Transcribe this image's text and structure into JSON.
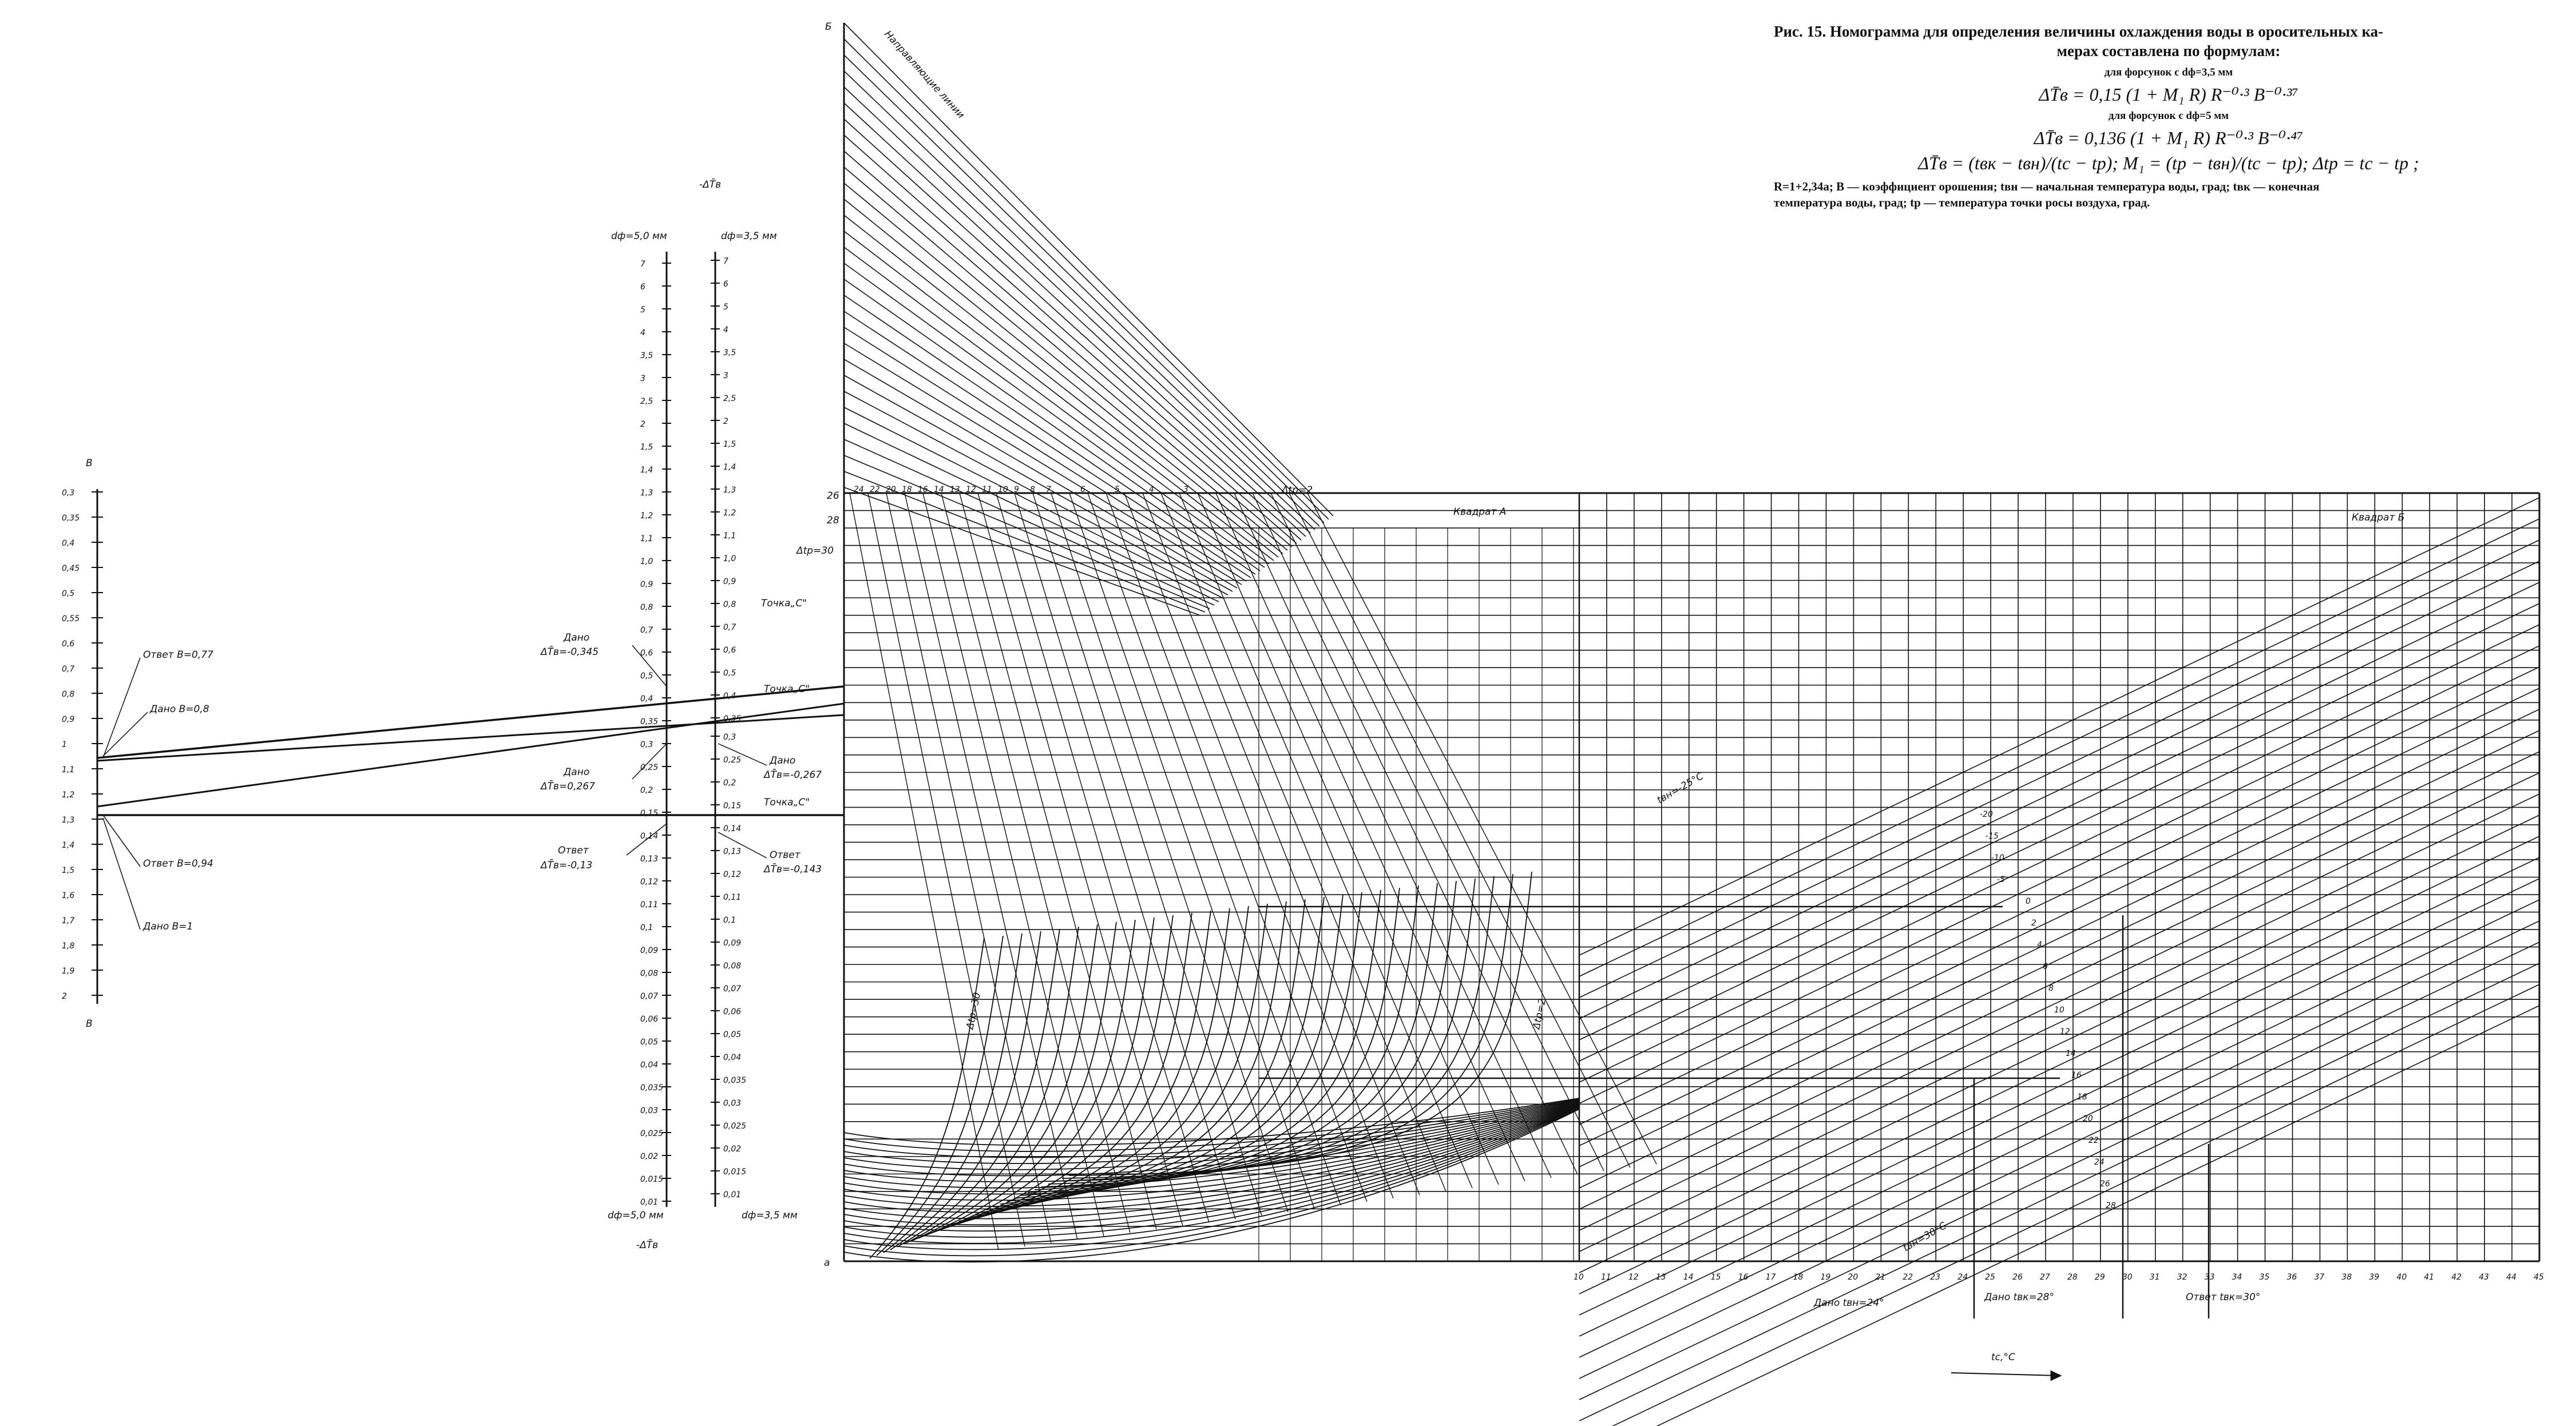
{
  "header": {
    "title_line1": "Рис. 15. Номограмма для определения величины охлаждения воды в оросительных ка-",
    "title_line2": "мерах составлена по формулам:",
    "case1": "для форсунок с dф=3,5 мм",
    "formula1": "ΔT̄в = 0,15 (1 + M₁ R) R⁻⁰·³ B⁻⁰·³⁷",
    "case2": "для форсунок с dф=5 мм",
    "formula2": "ΔT̄в = 0,136 (1 + M₁ R) R⁻⁰·³ B⁻⁰·⁴⁷",
    "formula3": "ΔT̄в = (tвк − tвн)/(tс − tр);   M₁ = (tр − tвн)/(tс − tр);   Δtр = tс − tр ;",
    "legend_line1": "R=1+2,34a; B — коэффициент орошения; tвн — начальная температура воды, град; tвк — конечная",
    "legend_line2": "температура воды, град; tр — температура точки росы воздуха, град."
  },
  "scale_B": {
    "top_letter": "B",
    "bottom_letter": "B",
    "ticks": [
      "0,3",
      "0,35",
      "0,4",
      "0,45",
      "0,5",
      "0,55",
      "0,6",
      "0,7",
      "0,8",
      "0,9",
      "1",
      "1,1",
      "1,2",
      "1,3",
      "1,4",
      "1,5",
      "1,6",
      "1,7",
      "1,8",
      "1,9",
      "2"
    ]
  },
  "scale_dT": {
    "top_title": "-ΔT̄в",
    "bottom_title": "-ΔT̄в",
    "left_header": "dф=5,0 мм",
    "right_header": "dф=3,5 мм",
    "left_footer": "dф=5,0 мм",
    "right_footer": "dф=3,5 мм",
    "ticks": [
      "7",
      "6",
      "5",
      "4",
      "3,5",
      "3",
      "2,5",
      "2",
      "1,5",
      "1,4",
      "1,3",
      "1,2",
      "1,1",
      "1,0",
      "0,9",
      "0,8",
      "0,7",
      "0,6",
      "0,5",
      "0,4",
      "0,35",
      "0,3",
      "0,25",
      "0,2",
      "0,15",
      "0,14",
      "0,13",
      "0,12",
      "0,11",
      "0,1",
      "0,09",
      "0,08",
      "0,07",
      "0,06",
      "0,05",
      "0,04",
      "0,035",
      "0,03",
      "0,025",
      "0,02",
      "0,015",
      "0,01"
    ]
  },
  "annotations": {
    "otvet_B_077": "Ответ B=0,77",
    "dano_B_08": "Дано B=0,8",
    "dano_dT_0345_a": "Дано",
    "dano_dT_0345_b": "ΔT̄в=-0,345",
    "dano_dT_0267_a": "Дано",
    "dano_dT_0267_b": "ΔT̄в=0,267",
    "otvet_B_094": "Ответ B=0,94",
    "dano_B_1": "Дано B=1",
    "otvet_dT_013_a": "Ответ",
    "otvet_dT_013_b": "ΔT̄в=-0,13",
    "dano_dT_0267r_a": "Дано",
    "dano_dT_0267r_b": "ΔT̄в=-0,267",
    "otvet_dT_0143_a": "Ответ",
    "otvet_dT_0143_b": "ΔT̄в=-0,143",
    "tochka_c1": "Точка„С\"",
    "tochka_c2": "Точка„С\"",
    "tochka_c3": "Точка„С\"",
    "guide_lines": "Направляющие линии",
    "corner_top": "Б",
    "corner_bottom": "a",
    "kvadrat_A": "Квадрат А",
    "kvadrat_B": "Квадрат Б",
    "dtp_30": "Δtр=30",
    "dtp_2": "Δtр=2",
    "dtp_30_curve": "Δtр=30",
    "dtp_2_curve": "Δtр=2",
    "dano_tvn": "Дано tвн=24°",
    "dano_tvk": "Дано tвк=28°",
    "otvet_tvk": "Ответ tвк=30°",
    "axis_label": "tс,°С",
    "tvn_minus25": "tвн=-25°С",
    "tvn_30": "tвн=30°С"
  },
  "dtp_top_labels": [
    "24",
    "22",
    "20",
    "18",
    "16",
    "14",
    "13",
    "12",
    "11",
    "10",
    "9",
    "8",
    "7",
    "6",
    "5",
    "4",
    "3"
  ],
  "tvn_labels": [
    "-20",
    "-15",
    "-10",
    "-5",
    "0",
    "2",
    "4",
    "6",
    "8",
    "10",
    "12",
    "14",
    "16",
    "18",
    "20",
    "22",
    "24",
    "26",
    "28"
  ],
  "x_axis_ticks": [
    "10",
    "11",
    "12",
    "13",
    "14",
    "15",
    "16",
    "17",
    "18",
    "19",
    "20",
    "21",
    "22",
    "23",
    "24",
    "25",
    "26",
    "27",
    "28",
    "29",
    "30",
    "31",
    "32",
    "33",
    "34",
    "35",
    "36",
    "37",
    "38",
    "39",
    "40",
    "41",
    "42",
    "43",
    "44",
    "45"
  ],
  "top_row_right": "26",
  "top_row_left": "28"
}
